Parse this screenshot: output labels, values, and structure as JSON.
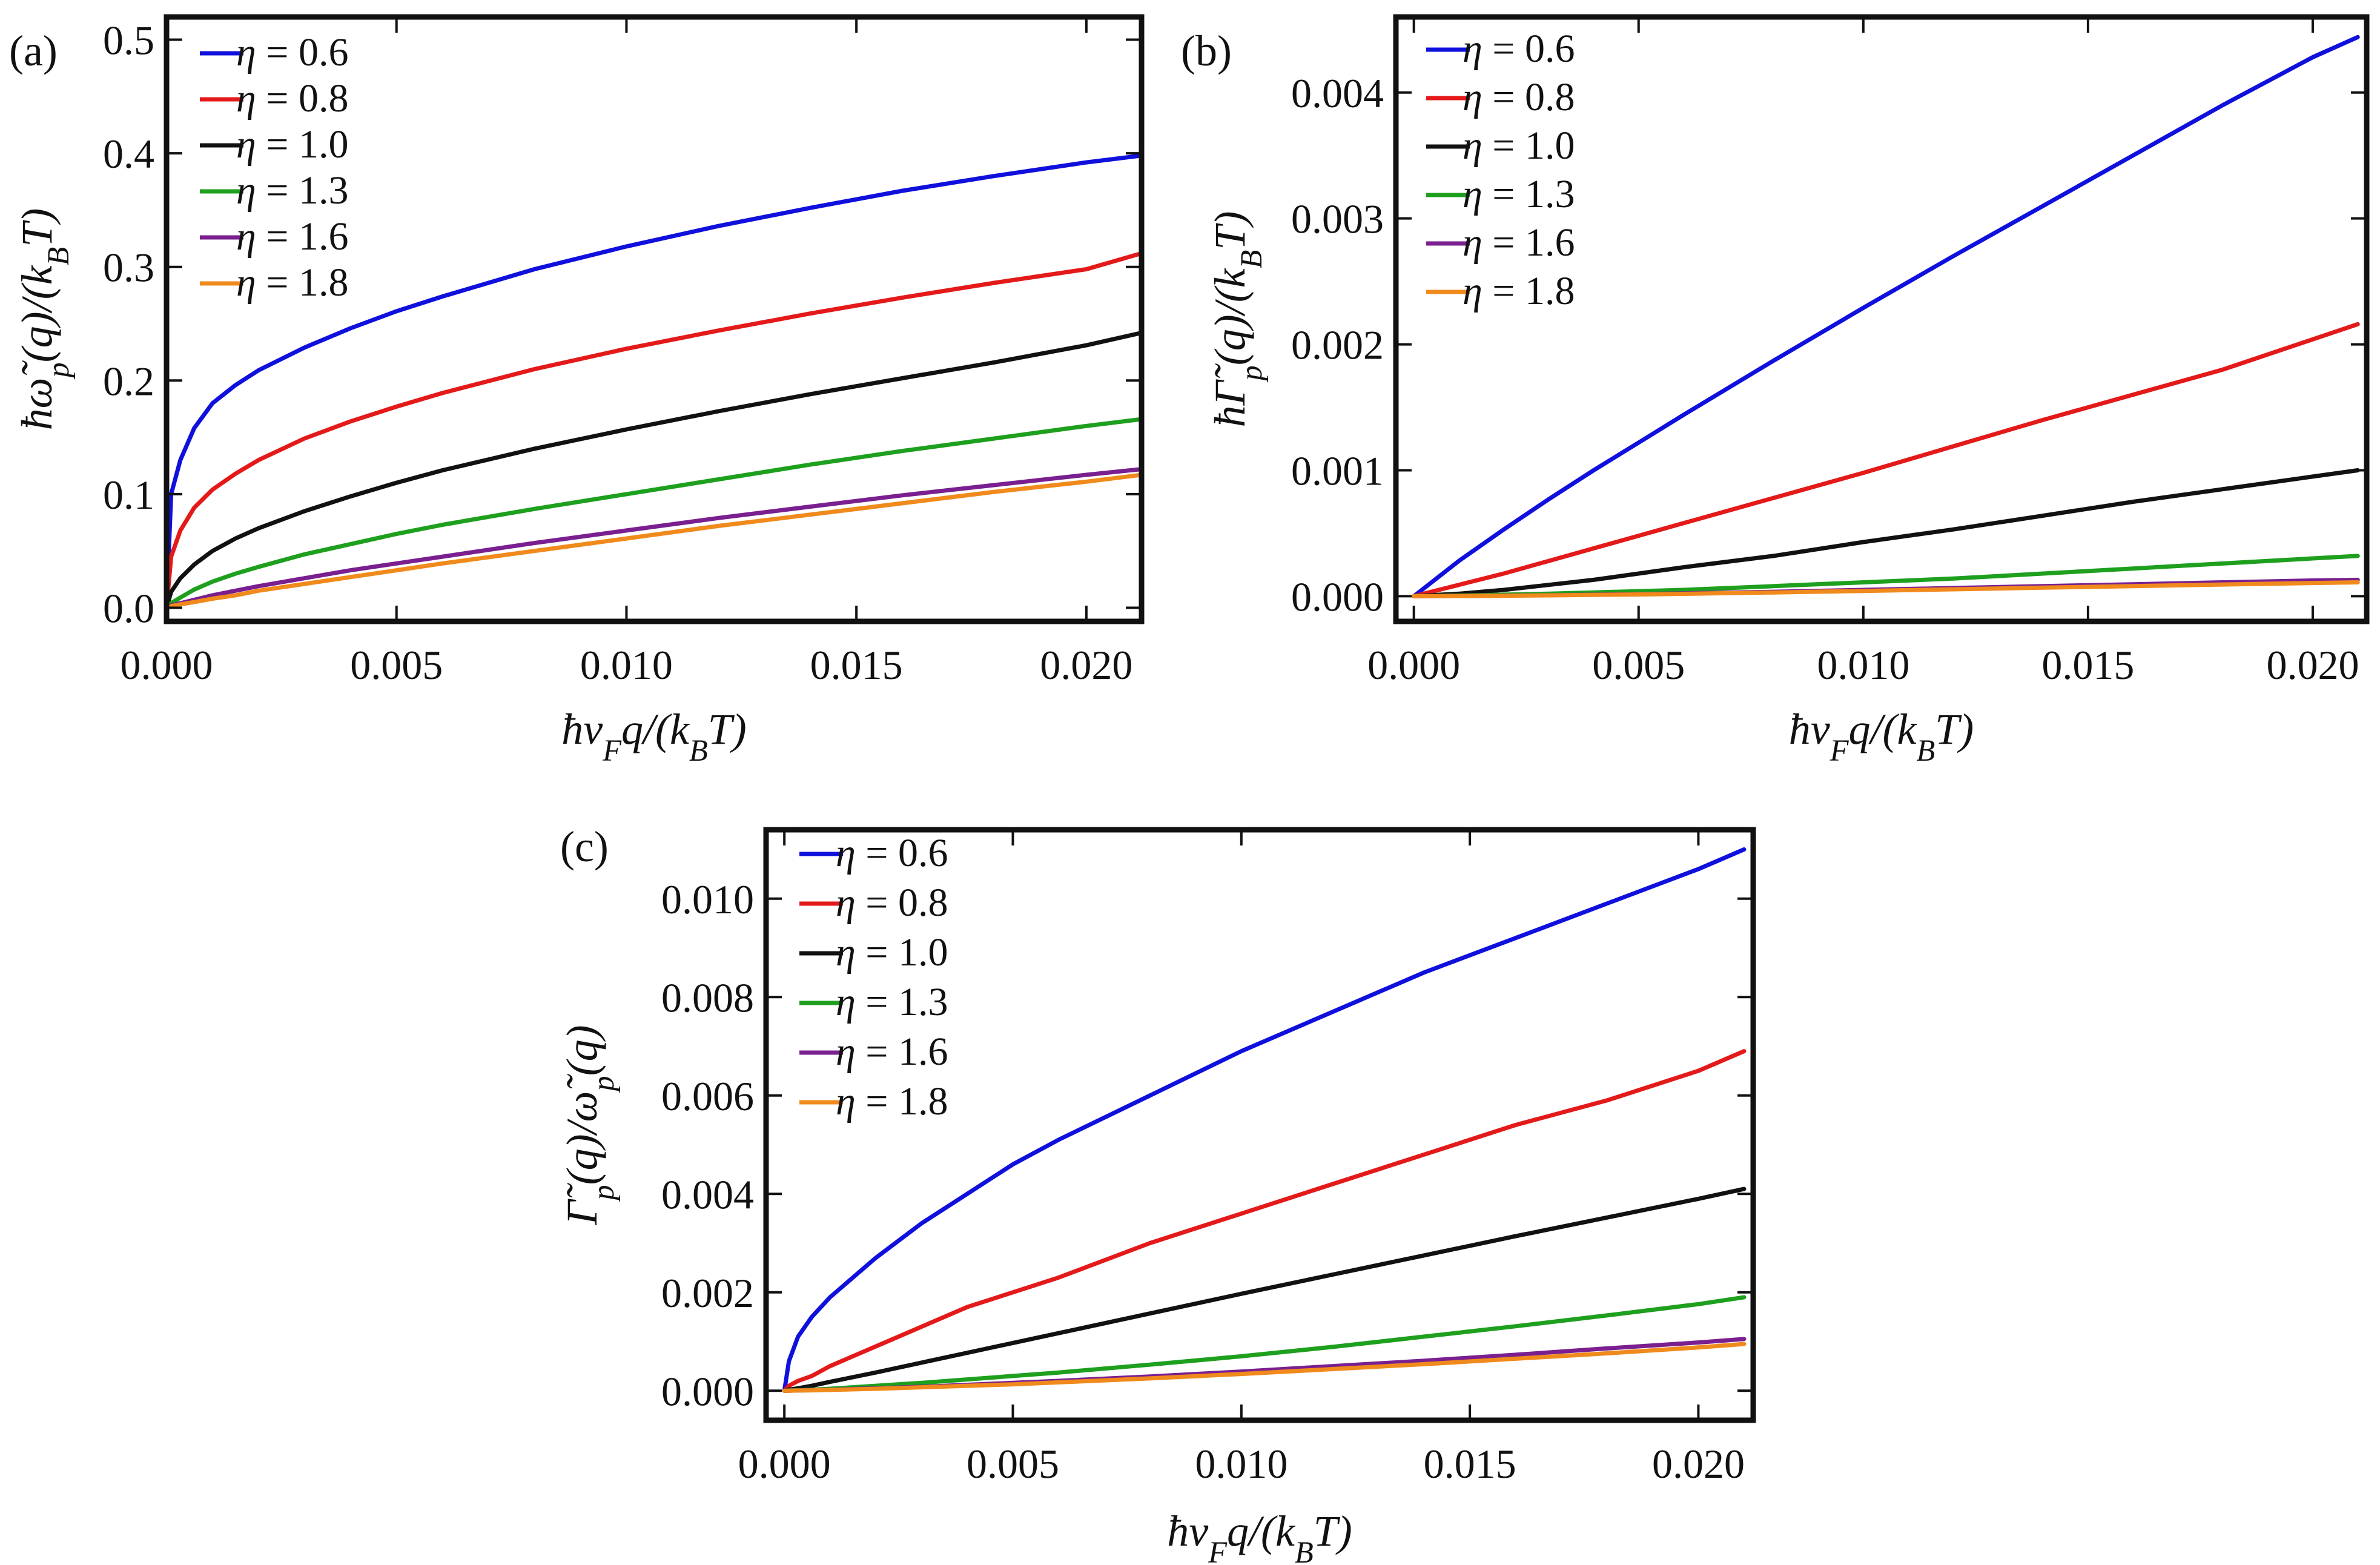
{
  "figure": {
    "series_names": [
      "η = 0.6",
      "η = 0.8",
      "η = 1.0",
      "η = 1.3",
      "η = 1.6",
      "η = 1.8"
    ]
  },
  "chart_data": [
    {
      "type": "line",
      "panel_label": "(a)",
      "title": "",
      "xlabel": "ħv_Fq/(k_BT)",
      "ylabel": "ħω̃_p(q)/(k_BT)",
      "xlim": [
        0,
        0.0212
      ],
      "ylim": [
        -0.012,
        0.52
      ],
      "xticks": [
        0,
        0.005,
        0.01,
        0.015,
        0.02
      ],
      "xtick_labels": [
        "0.000",
        "0.005",
        "0.010",
        "0.015",
        "0.020"
      ],
      "yticks": [
        0,
        0.1,
        0.2,
        0.3,
        0.4,
        0.5
      ],
      "ytick_labels": [
        "0.0",
        "0.1",
        "0.2",
        "0.3",
        "0.4",
        "0.5"
      ],
      "legend_position": "top-left",
      "x": [
        0,
        0.0001,
        0.0003,
        0.0006,
        0.001,
        0.0015,
        0.002,
        0.003,
        0.004,
        0.005,
        0.006,
        0.008,
        0.01,
        0.012,
        0.014,
        0.016,
        0.018,
        0.02,
        0.0212
      ],
      "series": [
        {
          "name": "η = 0.6",
          "color": "#1010dd",
          "values": [
            0,
            0.1,
            0.13,
            0.158,
            0.18,
            0.196,
            0.209,
            0.229,
            0.246,
            0.261,
            0.274,
            0.298,
            0.318,
            0.336,
            0.352,
            0.367,
            0.38,
            0.392,
            0.398
          ]
        },
        {
          "name": "η = 0.8",
          "color": "#e41a1a",
          "values": [
            0,
            0.045,
            0.068,
            0.088,
            0.104,
            0.118,
            0.13,
            0.149,
            0.164,
            0.177,
            0.189,
            0.21,
            0.228,
            0.244,
            0.259,
            0.273,
            0.286,
            0.298,
            0.312
          ]
        },
        {
          "name": "η = 1.0",
          "color": "#111111",
          "values": [
            0,
            0.014,
            0.026,
            0.038,
            0.05,
            0.061,
            0.07,
            0.085,
            0.098,
            0.11,
            0.121,
            0.14,
            0.157,
            0.173,
            0.188,
            0.202,
            0.216,
            0.231,
            0.242
          ]
        },
        {
          "name": "η = 1.3",
          "color": "#1ea01e",
          "values": [
            0,
            0.004,
            0.009,
            0.016,
            0.023,
            0.03,
            0.036,
            0.047,
            0.056,
            0.065,
            0.073,
            0.087,
            0.1,
            0.113,
            0.126,
            0.138,
            0.149,
            0.16,
            0.166
          ]
        },
        {
          "name": "η = 1.6",
          "color": "#7a1f8f",
          "values": [
            0,
            0.002,
            0.004,
            0.007,
            0.011,
            0.015,
            0.019,
            0.026,
            0.033,
            0.039,
            0.045,
            0.057,
            0.068,
            0.079,
            0.089,
            0.099,
            0.108,
            0.117,
            0.122
          ]
        },
        {
          "name": "η = 1.8",
          "color": "#f08a1c",
          "values": [
            0,
            0.0015,
            0.003,
            0.005,
            0.008,
            0.011,
            0.015,
            0.021,
            0.027,
            0.033,
            0.039,
            0.05,
            0.061,
            0.072,
            0.082,
            0.092,
            0.102,
            0.111,
            0.117
          ]
        }
      ]
    },
    {
      "type": "line",
      "panel_label": "(b)",
      "title": "",
      "xlabel": "ħv_Fq/(k_BT)",
      "ylabel": "ħΓ̃_p(q)/(k_BT)",
      "xlim": [
        -0.0004,
        0.0212
      ],
      "ylim": [
        -0.0002,
        0.0046
      ],
      "xticks": [
        0,
        0.005,
        0.01,
        0.015,
        0.02
      ],
      "xtick_labels": [
        "0.000",
        "0.005",
        "0.010",
        "0.015",
        "0.020"
      ],
      "yticks": [
        0,
        0.001,
        0.002,
        0.003,
        0.004
      ],
      "ytick_labels": [
        "0.000",
        "0.001",
        "0.002",
        "0.003",
        "0.004"
      ],
      "legend_position": "top-left",
      "x": [
        0,
        0.001,
        0.002,
        0.003,
        0.004,
        0.005,
        0.006,
        0.008,
        0.01,
        0.012,
        0.014,
        0.016,
        0.018,
        0.02,
        0.021
      ],
      "series": [
        {
          "name": "η = 0.6",
          "color": "#1010dd",
          "values": [
            0,
            0.00028,
            0.00053,
            0.00077,
            0.001,
            0.00122,
            0.00144,
            0.00187,
            0.00229,
            0.0027,
            0.0031,
            0.0035,
            0.0039,
            0.00428,
            0.00444
          ]
        },
        {
          "name": "η = 0.8",
          "color": "#e41a1a",
          "values": [
            0,
            9e-05,
            0.00018,
            0.00028,
            0.00038,
            0.00048,
            0.00058,
            0.00078,
            0.00098,
            0.00119,
            0.0014,
            0.0016,
            0.0018,
            0.00204,
            0.00216
          ]
        },
        {
          "name": "η = 1.0",
          "color": "#111111",
          "values": [
            0,
            2e-05,
            5e-05,
            9e-05,
            0.00013,
            0.00018,
            0.00023,
            0.00032,
            0.00043,
            0.00053,
            0.00064,
            0.00075,
            0.00085,
            0.00095,
            0.001
          ]
        },
        {
          "name": "η = 1.3",
          "color": "#1ea01e",
          "values": [
            0,
            5e-06,
            1.2e-05,
            2e-05,
            3e-05,
            4e-05,
            5e-05,
            8e-05,
            0.00011,
            0.00014,
            0.00018,
            0.00022,
            0.00026,
            0.0003,
            0.00032
          ]
        },
        {
          "name": "η = 1.6",
          "color": "#7a1f8f",
          "values": [
            0,
            2e-06,
            5e-06,
            8e-06,
            1.2e-05,
            1.7e-05,
            2.2e-05,
            3.5e-05,
            5e-05,
            6.5e-05,
            8e-05,
            9.5e-05,
            0.00011,
            0.000125,
            0.00013
          ]
        },
        {
          "name": "η = 1.8",
          "color": "#f08a1c",
          "values": [
            0,
            2e-06,
            4e-06,
            7e-06,
            1e-05,
            1.4e-05,
            1.9e-05,
            3e-05,
            4.2e-05,
            5.5e-05,
            6.8e-05,
            8e-05,
            9.3e-05,
            0.000105,
            0.00011
          ]
        }
      ]
    },
    {
      "type": "line",
      "panel_label": "(c)",
      "title": "",
      "xlabel": "ħv_Fq/(k_BT)",
      "ylabel": "Γ̃_p(q)/ω̃_p(q)",
      "xlim": [
        -0.0004,
        0.0212
      ],
      "ylim": [
        -0.0006,
        0.0114
      ],
      "xticks": [
        0,
        0.005,
        0.01,
        0.015,
        0.02
      ],
      "xtick_labels": [
        "0.000",
        "0.005",
        "0.010",
        "0.015",
        "0.020"
      ],
      "yticks": [
        0,
        0.002,
        0.004,
        0.006,
        0.008,
        0.01
      ],
      "ytick_labels": [
        "0.000",
        "0.002",
        "0.004",
        "0.006",
        "0.008",
        "0.010"
      ],
      "legend_position": "top-left",
      "x": [
        0,
        0.0001,
        0.0003,
        0.0006,
        0.001,
        0.002,
        0.003,
        0.004,
        0.005,
        0.006,
        0.008,
        0.01,
        0.012,
        0.014,
        0.016,
        0.018,
        0.02,
        0.021
      ],
      "series": [
        {
          "name": "η = 0.6",
          "color": "#1010dd",
          "values": [
            0,
            0.0006,
            0.0011,
            0.0015,
            0.0019,
            0.0027,
            0.0034,
            0.004,
            0.0046,
            0.0051,
            0.006,
            0.0069,
            0.0077,
            0.0085,
            0.0092,
            0.0099,
            0.0106,
            0.011
          ]
        },
        {
          "name": "η = 0.8",
          "color": "#e41a1a",
          "values": [
            0,
            0.0001,
            0.0002,
            0.0003,
            0.0005,
            0.0009,
            0.0013,
            0.0017,
            0.002,
            0.0023,
            0.003,
            0.0036,
            0.0042,
            0.0048,
            0.0054,
            0.0059,
            0.0065,
            0.0069
          ]
        },
        {
          "name": "η = 1.0",
          "color": "#111111",
          "values": [
            0,
            2e-05,
            5e-05,
            0.0001,
            0.00018,
            0.00037,
            0.00057,
            0.00077,
            0.00097,
            0.00117,
            0.00157,
            0.00197,
            0.00236,
            0.00275,
            0.00314,
            0.00352,
            0.0039,
            0.0041
          ]
        },
        {
          "name": "η = 1.3",
          "color": "#1ea01e",
          "values": [
            0,
            5e-06,
            1e-05,
            2e-05,
            4e-05,
            0.0001,
            0.00016,
            0.00023,
            0.0003,
            0.00037,
            0.00053,
            0.0007,
            0.00089,
            0.0011,
            0.00131,
            0.00153,
            0.00176,
            0.0019
          ]
        },
        {
          "name": "η = 1.6",
          "color": "#7a1f8f",
          "values": [
            0,
            0,
            5e-06,
            1e-05,
            2e-05,
            5e-05,
            8e-05,
            0.00012,
            0.00016,
            0.0002,
            0.00029,
            0.00039,
            0.0005,
            0.00061,
            0.00073,
            0.00086,
            0.00098,
            0.00105
          ]
        },
        {
          "name": "η = 1.8",
          "color": "#f08a1c",
          "values": [
            0,
            0,
            4e-06,
            8e-06,
            1.6e-05,
            4e-05,
            7e-05,
            0.0001,
            0.00013,
            0.00017,
            0.00025,
            0.00034,
            0.00044,
            0.00054,
            0.00065,
            0.00076,
            0.00088,
            0.00095
          ]
        }
      ]
    }
  ]
}
